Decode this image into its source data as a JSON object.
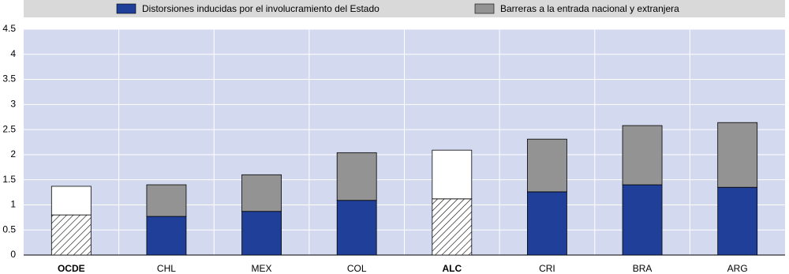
{
  "chart_data": {
    "type": "stacked-bar",
    "categories": [
      "OCDE",
      "CHL",
      "MEX",
      "COL",
      "ALC",
      "CRI",
      "BRA",
      "ARG"
    ],
    "highlight": [
      0,
      4
    ],
    "series": [
      {
        "name": "Distorsiones inducidas por el involucramiento del Estado",
        "color": "#1f3f98",
        "values": [
          0.8,
          0.77,
          0.87,
          1.09,
          1.12,
          1.26,
          1.4,
          1.35
        ]
      },
      {
        "name": "Barreras a la entrada nacional y extranjera",
        "color": "#939393",
        "values": [
          0.57,
          0.63,
          0.73,
          0.95,
          0.97,
          1.05,
          1.18,
          1.29
        ]
      }
    ],
    "ylim": [
      0,
      4.5
    ],
    "yticks": [
      0,
      0.5,
      1.0,
      1.5,
      2.0,
      2.5,
      3.0,
      3.5,
      4.0,
      4.5
    ],
    "grid": true
  }
}
